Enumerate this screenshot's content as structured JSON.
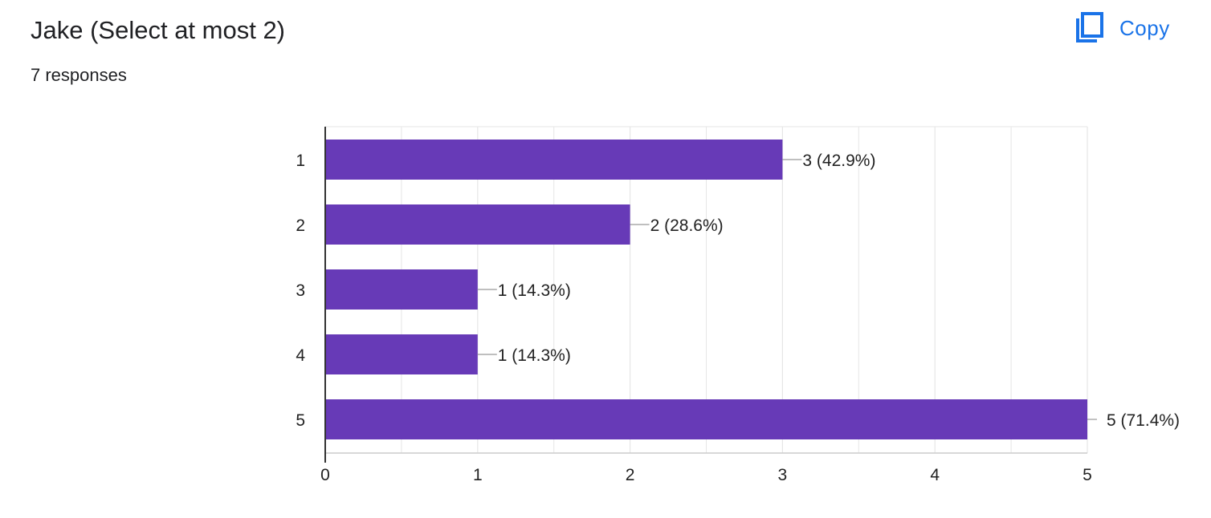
{
  "header": {
    "title": "Jake (Select at most 2)",
    "responses": "7 responses",
    "copy_label": "Copy"
  },
  "colors": {
    "bar": "#673ab7",
    "accent": "#1a73e8",
    "grid": "#e6e6e6",
    "axis": "#333333"
  },
  "icons": {
    "copy": "copy-icon"
  },
  "chart_data": {
    "type": "bar",
    "orientation": "horizontal",
    "title": "",
    "xlabel": "",
    "ylabel": "",
    "categories": [
      "1",
      "2",
      "3",
      "4",
      "5"
    ],
    "values": [
      3,
      2,
      1,
      1,
      5
    ],
    "data_labels": [
      "3 (42.9%)",
      "2 (28.6%)",
      "1 (14.3%)",
      "1 (14.3%)",
      "5 (71.4%)"
    ],
    "xlim": [
      0,
      5
    ],
    "xticks": [
      "0",
      "1",
      "2",
      "3",
      "4",
      "5"
    ],
    "grid": true
  }
}
